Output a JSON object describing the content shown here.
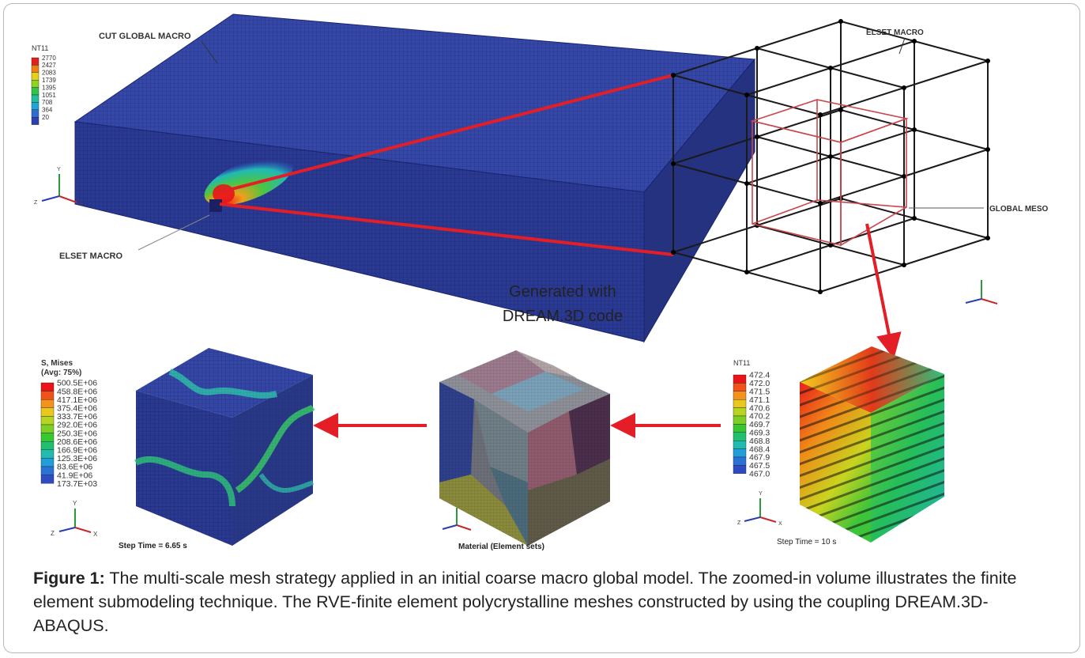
{
  "figure": {
    "labels": {
      "cut_global_macro": "CUT GLOBAL MACRO",
      "elset_macro_left": "ELSET MACRO",
      "elset_macro_right": "ELSET MACRO",
      "global_meso": "GLOBAL MESO",
      "generated_with": "Generated with",
      "dream3d_code": "DREAM.3D code",
      "step_time_rve": "Step Time = 10 s",
      "step_time_stress": "Step Time = 6.65 s",
      "material_sets": "Material (Element sets)"
    },
    "legend_top": {
      "title": "NT11",
      "values": [
        "2770",
        "2427",
        "2083",
        "1739",
        "1395",
        "1051",
        "708",
        "364",
        "20"
      ],
      "colors": [
        "#e32020",
        "#f27d12",
        "#e5d11a",
        "#8fd323",
        "#33c24a",
        "#1fbf9a",
        "#1fa6d6",
        "#2f6bd0",
        "#2e3fb2"
      ]
    },
    "legend_rve": {
      "title": "NT11",
      "values": [
        "472.4",
        "472.0",
        "471.5",
        "471.1",
        "470.6",
        "470.2",
        "469.7",
        "469.3",
        "468.8",
        "468.4",
        "467.9",
        "467.5",
        "467.0"
      ],
      "colors": [
        "#e8141a",
        "#f0521a",
        "#f4931b",
        "#e9c81e",
        "#b6d422",
        "#7cd025",
        "#38c731",
        "#20c070",
        "#21bbaf",
        "#1f9ed9",
        "#2a73d4",
        "#2e4bc3"
      ]
    },
    "legend_stress": {
      "title": "S, Mises",
      "subtitle": "(Avg: 75%)",
      "values": [
        "500.5E+06",
        "458.8E+06",
        "417.1E+06",
        "375.4E+06",
        "333.7E+06",
        "292.0E+06",
        "250.3E+06",
        "208.6E+06",
        "166.9E+06",
        "125.3E+06",
        "83.6E+06",
        "41.9E+06",
        "173.7E+03"
      ],
      "colors": [
        "#e8141a",
        "#f0521a",
        "#f4931b",
        "#e9c81e",
        "#b6d422",
        "#7cd025",
        "#38c731",
        "#20c070",
        "#21bbaf",
        "#1f9ed9",
        "#2a73d4",
        "#2e4bc3"
      ]
    },
    "axes": {
      "x": "X",
      "y": "Y",
      "z": "Z"
    }
  },
  "caption": {
    "label": "Figure 1:",
    "text": " The multi-scale mesh strategy applied in an initial coarse macro global model. The zoomed-in volume illustrates the finite element submodeling technique. The RVE-finite element polycrystalline meshes constructed by using the coupling DREAM.3D-ABAQUS."
  }
}
